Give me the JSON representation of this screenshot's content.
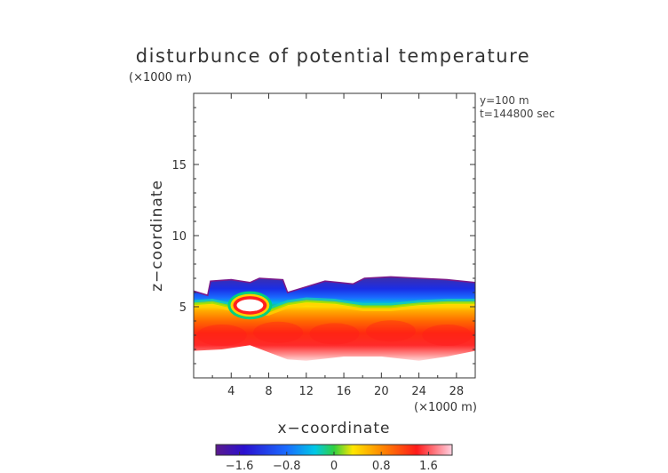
{
  "chart_data": {
    "type": "heatmap",
    "title": "disturbunce of potential temperature",
    "y_unit": "(×1000 m)",
    "x_unit": "(×1000 m)",
    "xlabel": "x−coordinate",
    "ylabel": "z−coordinate",
    "info": [
      "y=100 m",
      "t=144800 sec"
    ],
    "xlim": [
      0,
      30
    ],
    "ylim": [
      0,
      20
    ],
    "x_ticks": [
      4,
      8,
      12,
      16,
      20,
      24,
      28
    ],
    "y_ticks": [
      5,
      10,
      15
    ],
    "colorbar": {
      "range": [
        -2.0,
        2.0
      ],
      "ticks": [
        -1.6,
        -0.8,
        0,
        0.8,
        1.6
      ],
      "tick_labels": [
        "−1.6",
        "−0.8",
        "0",
        "0.8",
        "1.6"
      ]
    },
    "field": {
      "top_boundary": [
        [
          0,
          6.1
        ],
        [
          1.5,
          5.8
        ],
        [
          1.8,
          6.8
        ],
        [
          4,
          6.9
        ],
        [
          6,
          6.7
        ],
        [
          7,
          7.0
        ],
        [
          9.5,
          6.9
        ],
        [
          10,
          6.0
        ],
        [
          12,
          6.4
        ],
        [
          14,
          6.8
        ],
        [
          17,
          6.6
        ],
        [
          18.2,
          7.0
        ],
        [
          21,
          7.1
        ],
        [
          24,
          7.0
        ],
        [
          27,
          6.9
        ],
        [
          30,
          6.7
        ]
      ],
      "bottom_boundary": [
        [
          0,
          1.9
        ],
        [
          3,
          2.0
        ],
        [
          6,
          2.3
        ],
        [
          8,
          1.8
        ],
        [
          10,
          1.3
        ],
        [
          12,
          1.2
        ],
        [
          16,
          1.5
        ],
        [
          20,
          1.5
        ],
        [
          24,
          1.2
        ],
        [
          27,
          1.5
        ],
        [
          30,
          1.9
        ]
      ],
      "zero_line": [
        [
          0,
          5.2
        ],
        [
          2,
          5.3
        ],
        [
          4,
          5.0
        ],
        [
          6,
          4.6
        ],
        [
          8,
          4.7
        ],
        [
          10,
          5.2
        ],
        [
          12,
          5.4
        ],
        [
          15,
          5.3
        ],
        [
          18,
          5.0
        ],
        [
          21,
          5.0
        ],
        [
          24,
          5.2
        ],
        [
          27,
          5.3
        ],
        [
          30,
          5.3
        ]
      ],
      "bubble": {
        "x": 6.0,
        "z": 5.1,
        "rx": 1.6,
        "rz": 0.55
      }
    }
  }
}
